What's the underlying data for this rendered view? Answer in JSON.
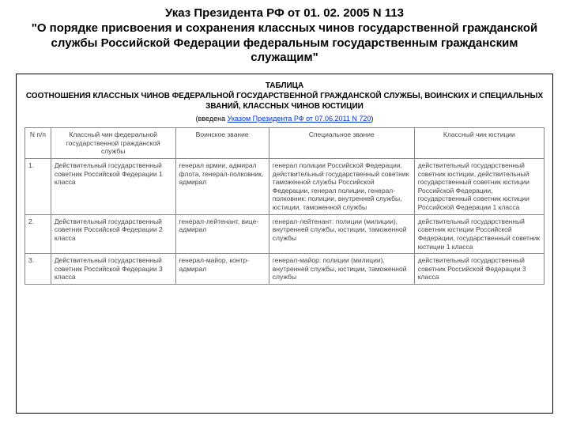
{
  "heading": {
    "line1": "Указ Президента РФ от 01. 02. 2005 N 113",
    "line2": "\"О порядке присвоения и сохранения классных чинов государственной гражданской службы Российской Федерации федеральным государственным гражданским служащим\""
  },
  "table_caption": {
    "word": "ТАБЛИЦА",
    "title": "СООТНОШЕНИЯ КЛАССНЫХ ЧИНОВ ФЕДЕРАЛЬНОЙ ГОСУДАРСТВЕННОЙ ГРАЖДАНСКОЙ СЛУЖБЫ, ВОИНСКИХ И СПЕЦИАЛЬНЫХ ЗВАНИЙ, КЛАССНЫХ ЧИНОВ ЮСТИЦИИ",
    "note_prefix": "(введена ",
    "note_link": "Указом Президента РФ от 07.06.2011 N 720",
    "note_suffix": ")"
  },
  "headers": {
    "c0": "N п/п",
    "c1": "Классный чин федеральной государственной гражданской службы",
    "c2": "Воинское звание",
    "c3": "Специальное звание",
    "c4": "Классный чин юстиции"
  },
  "rows": [
    {
      "n": "1.",
      "c1": "Действительный государственный советник Российской Федерации 1 класса",
      "c2": "генерал армии, адмирал флота, генерал-полковник, адмирал",
      "c3": "генерал полиции Российской Федерации, действительный государственный советник таможенной службы Российской Федерации, генерал полиции, генерал-полковник: полиции, внутренней службы, юстиции, таможенной службы",
      "c4": "действительный государственный советник юстиции, действительный государственный советник юстиции Российской Федерации, государственный советник юстиции Российской Федерации 1 класса"
    },
    {
      "n": "2.",
      "c1": "Действительный государственный советник Российской Федерации 2 класса",
      "c2": "генерал-лейтенант, вице-адмирал",
      "c3": "генерал-лейтенант: полиции (милиции), внутренней службы, юстиции, таможенной службы",
      "c4": "действительный государственный советник юстиции Российской Федерации, государственный советник юстиции 1 класса"
    },
    {
      "n": "3.",
      "c1": "Действительный государственный советник Российской Федерации 3 класса",
      "c2": "генерал-майор, контр-адмирал",
      "c3": "генерал-майор: полиции (милиции), внутренней службы, юстиции, таможенной службы",
      "c4": "действительный государственный советник Российской Федерации 3 класса"
    }
  ]
}
